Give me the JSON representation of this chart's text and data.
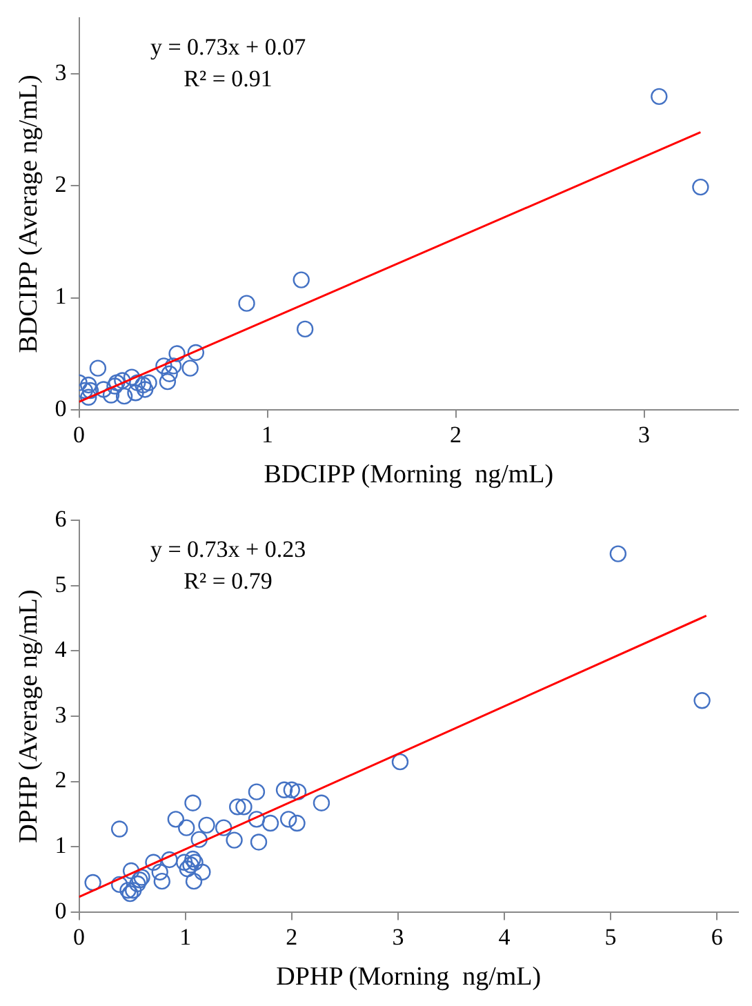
{
  "chart_data": [
    {
      "type": "scatter",
      "xlabel": "BDCIPP (Morning  ng/mL)",
      "ylabel": "BDCIPP (Average ng/mL)",
      "xlim": [
        0,
        3.5
      ],
      "ylim": [
        0,
        3.5
      ],
      "xticks": [
        0,
        1,
        2,
        3
      ],
      "yticks": [
        0,
        1,
        2,
        3
      ],
      "grid": false,
      "legend": false,
      "marker": "circle",
      "annotations": [
        "y = 0.73x + 0.07",
        "R² = 0.91"
      ],
      "series": [
        {
          "color": "#4472c4",
          "x": [
            0,
            0.05,
            0.05,
            0.03,
            0.06,
            0.1,
            0.13,
            0.17,
            0.19,
            0.2,
            0.23,
            0.24,
            0.28,
            0.3,
            0.31,
            0.34,
            0.35,
            0.37,
            0.45,
            0.47,
            0.48,
            0.5,
            0.52,
            0.59,
            0.62,
            0.89,
            1.18,
            1.2,
            3.08,
            3.3
          ],
          "values": [
            0.24,
            0.22,
            0.11,
            0.17,
            0.17,
            0.37,
            0.18,
            0.13,
            0.21,
            0.24,
            0.26,
            0.12,
            0.29,
            0.15,
            0.24,
            0.22,
            0.18,
            0.24,
            0.39,
            0.25,
            0.32,
            0.39,
            0.5,
            0.37,
            0.51,
            0.95,
            1.16,
            0.72,
            2.8,
            1.99
          ]
        },
        {
          "type": "line",
          "color": "#ff0000",
          "marker": "none",
          "line_style": "solid",
          "x": [
            0,
            3.3
          ],
          "values": [
            0.07,
            2.48
          ]
        }
      ]
    },
    {
      "type": "scatter",
      "xlabel": "DPHP (Morning  ng/mL)",
      "ylabel": "DPHP (Average ng/mL)",
      "xlim": [
        0,
        6.2
      ],
      "ylim": [
        0,
        6
      ],
      "xticks": [
        0,
        1,
        2,
        3,
        4,
        5,
        6
      ],
      "yticks": [
        0,
        1,
        2,
        3,
        4,
        5,
        6
      ],
      "grid": false,
      "legend": false,
      "marker": "circle",
      "annotations": [
        "y = 0.73x + 0.23",
        "R² = 0.79"
      ],
      "series": [
        {
          "color": "#4472c4",
          "x": [
            0.13,
            0.38,
            0.38,
            0.49,
            0.46,
            0.48,
            0.51,
            0.55,
            0.57,
            0.59,
            0.7,
            0.76,
            0.78,
            0.85,
            0.91,
            0.99,
            1.01,
            1.02,
            1.05,
            1.07,
            1.08,
            1.07,
            1.09,
            1.13,
            1.16,
            1.2,
            1.36,
            1.46,
            1.49,
            1.55,
            1.67,
            1.67,
            1.69,
            1.8,
            1.93,
            1.97,
            2.0,
            2.05,
            2.06,
            2.28,
            3.02,
            5.07,
            5.86
          ],
          "values": [
            0.45,
            1.27,
            0.42,
            0.63,
            0.33,
            0.28,
            0.33,
            0.43,
            0.49,
            0.53,
            0.76,
            0.61,
            0.47,
            0.8,
            1.42,
            0.76,
            1.29,
            0.66,
            0.72,
            0.81,
            0.47,
            1.67,
            0.76,
            1.11,
            0.61,
            1.33,
            1.29,
            1.1,
            1.61,
            1.61,
            1.42,
            1.84,
            1.07,
            1.36,
            1.87,
            1.42,
            1.87,
            1.36,
            1.84,
            1.67,
            2.3,
            5.49,
            3.24
          ]
        },
        {
          "type": "line",
          "color": "#ff0000",
          "marker": "none",
          "line_style": "solid",
          "x": [
            0,
            5.9
          ],
          "values": [
            0.23,
            4.54
          ]
        }
      ]
    }
  ]
}
